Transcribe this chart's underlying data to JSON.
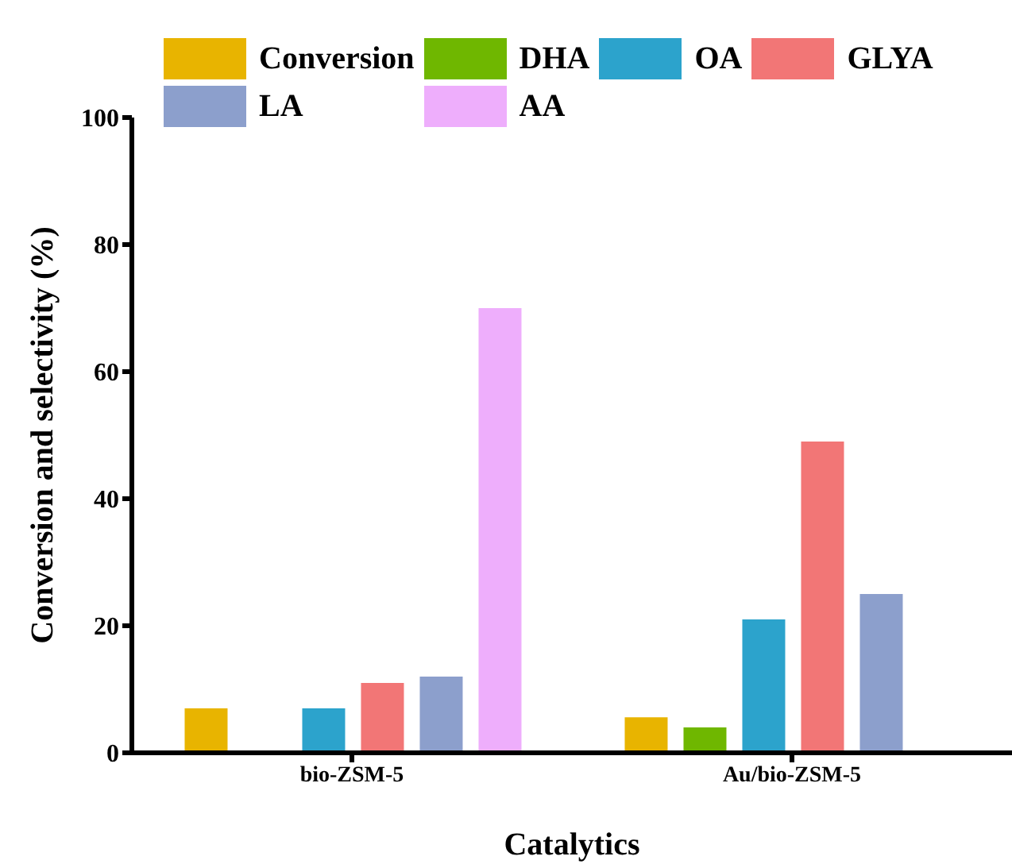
{
  "chart_data": {
    "type": "bar",
    "xlabel": "Catalytics",
    "ylabel": "Conversion and selectivity (%)",
    "categories": [
      "bio-ZSM-5",
      "Au/bio-ZSM-5"
    ],
    "series": [
      {
        "name": "Conversion",
        "color": "#e8b400",
        "values": [
          7,
          5.6
        ]
      },
      {
        "name": "DHA",
        "color": "#6fb700",
        "values": [
          null,
          4
        ]
      },
      {
        "name": "OA",
        "color": "#2ca3cc",
        "values": [
          7,
          21
        ]
      },
      {
        "name": "GLYA",
        "color": "#f27676",
        "values": [
          11,
          49
        ]
      },
      {
        "name": "LA",
        "color": "#8c9fcc",
        "values": [
          12,
          25
        ]
      },
      {
        "name": "AA",
        "color": "#eeaefc",
        "values": [
          70,
          null
        ]
      }
    ],
    "ylim": [
      0,
      100
    ],
    "yticks": [
      0,
      20,
      40,
      60,
      80,
      100
    ],
    "legend": "top",
    "grid": false
  }
}
